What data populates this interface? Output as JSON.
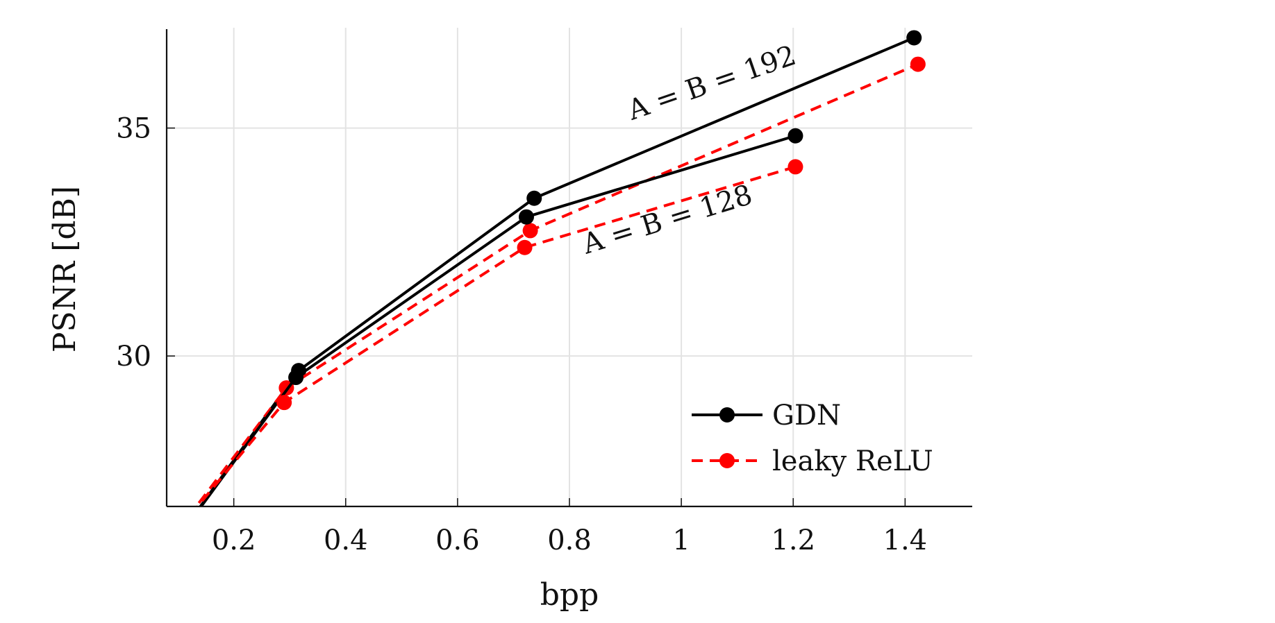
{
  "chart_data": {
    "type": "line",
    "xlabel": "bpp",
    "ylabel": "PSNR [dB]",
    "xlim": [
      0.08,
      1.52
    ],
    "ylim": [
      26.7,
      37.2
    ],
    "xticks": [
      0.2,
      0.4,
      0.6,
      0.8,
      1.0,
      1.2,
      1.4
    ],
    "xtick_labels": [
      "0.2",
      "0.4",
      "0.6",
      "0.8",
      "1",
      "1.2",
      "1.4"
    ],
    "yticks": [
      30,
      35
    ],
    "ytick_labels": [
      "30",
      "35"
    ],
    "grid": true,
    "legend_position": "bottom-right",
    "series": [
      {
        "name": "GDN",
        "group": "A = B = 192",
        "color": "#000000",
        "dash": "solid",
        "x": [
          0.04,
          0.316,
          0.737,
          1.416
        ],
        "y": [
          25.0,
          29.68,
          33.46,
          36.98
        ]
      },
      {
        "name": "leaky ReLU",
        "group": "A = B = 192",
        "color": "#ff0000",
        "dash": "dashed",
        "x": [
          0.04,
          0.294,
          0.73,
          1.423
        ],
        "y": [
          25.2,
          29.3,
          32.75,
          36.4
        ]
      },
      {
        "name": "GDN",
        "group": "A = B = 128",
        "color": "#000000",
        "dash": "solid",
        "x": [
          0.04,
          0.311,
          0.723,
          1.204
        ],
        "y": [
          25.0,
          29.53,
          33.05,
          34.83
        ]
      },
      {
        "name": "leaky ReLU",
        "group": "A = B = 128",
        "color": "#ff0000",
        "dash": "dashed",
        "x": [
          0.04,
          0.29,
          0.72,
          1.204
        ],
        "y": [
          25.3,
          28.98,
          32.38,
          34.15
        ]
      }
    ],
    "annotations": [
      {
        "text": "A = B = 192",
        "x": 1.06,
        "y": 35.8,
        "rotation": -19
      },
      {
        "text": "A = B = 128",
        "x": 0.98,
        "y": 32.8,
        "rotation": -17
      }
    ],
    "legend": [
      {
        "label": "GDN",
        "color": "#000000",
        "dash": "solid"
      },
      {
        "label": "leaky ReLU",
        "color": "#ff0000",
        "dash": "dashed"
      }
    ]
  }
}
